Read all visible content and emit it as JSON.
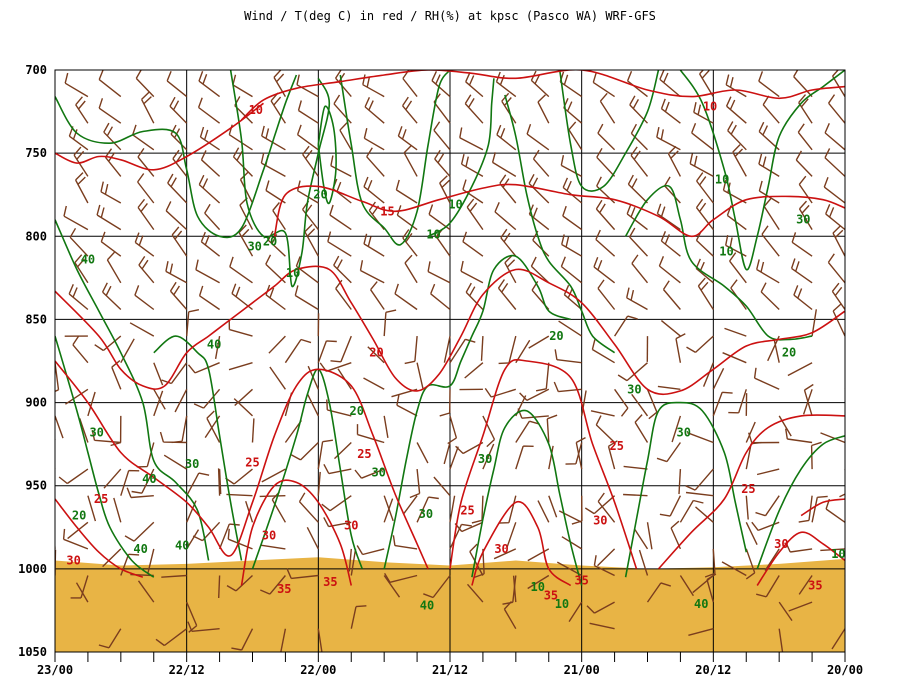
{
  "chart_data": {
    "type": "line",
    "title": "Wind / T(deg C) in red / RH(%) at kpsc (Pasco WA)  WRF-GFS",
    "xlabel": "",
    "ylabel": "",
    "x_tick_labels": [
      "23/00",
      "22/12",
      "22/00",
      "21/12",
      "21/00",
      "20/12",
      "20/00"
    ],
    "x_tick_hours": [
      0,
      12,
      24,
      36,
      48,
      60,
      72
    ],
    "y_tick_labels": [
      "700",
      "750",
      "800",
      "850",
      "900",
      "950",
      "1000",
      "1050"
    ],
    "y_ticks": [
      700,
      750,
      800,
      850,
      900,
      950,
      1000,
      1050
    ],
    "ylim": [
      700,
      1050
    ],
    "xlim": [
      0,
      72
    ],
    "grid": true,
    "colors": {
      "temperature": "#cc1111",
      "rh": "#117711",
      "wind": "#7a3d1e",
      "ground": "#e8b445"
    },
    "temperature_labels": [
      {
        "text": "10",
        "x": 18.3,
        "p": 724
      },
      {
        "text": "10",
        "x": 59.7,
        "p": 722
      },
      {
        "text": "15",
        "x": 30.3,
        "p": 785
      },
      {
        "text": "20",
        "x": 29.3,
        "p": 870
      },
      {
        "text": "25",
        "x": 18.0,
        "p": 936
      },
      {
        "text": "25",
        "x": 28.2,
        "p": 931
      },
      {
        "text": "25",
        "x": 37.6,
        "p": 965
      },
      {
        "text": "25",
        "x": 51.2,
        "p": 926
      },
      {
        "text": "25",
        "x": 63.2,
        "p": 952
      },
      {
        "text": "25",
        "x": 4.2,
        "p": 958
      },
      {
        "text": "30",
        "x": 1.7,
        "p": 995
      },
      {
        "text": "30",
        "x": 19.5,
        "p": 980
      },
      {
        "text": "30",
        "x": 27.0,
        "p": 974
      },
      {
        "text": "30",
        "x": 40.7,
        "p": 988
      },
      {
        "text": "30",
        "x": 49.7,
        "p": 971
      },
      {
        "text": "30",
        "x": 66.2,
        "p": 985
      },
      {
        "text": "35",
        "x": 20.9,
        "p": 1012
      },
      {
        "text": "35",
        "x": 25.1,
        "p": 1008
      },
      {
        "text": "35",
        "x": 45.2,
        "p": 1016
      },
      {
        "text": "35",
        "x": 48.0,
        "p": 1007
      },
      {
        "text": "35",
        "x": 69.3,
        "p": 1010
      }
    ],
    "rh_labels": [
      {
        "text": "10",
        "x": 34.5,
        "p": 799
      },
      {
        "text": "10",
        "x": 21.7,
        "p": 822
      },
      {
        "text": "10",
        "x": 60.8,
        "p": 766
      },
      {
        "text": "10",
        "x": 61.2,
        "p": 809
      },
      {
        "text": "10",
        "x": 36.5,
        "p": 781
      },
      {
        "text": "10",
        "x": 46.2,
        "p": 1021
      },
      {
        "text": "10",
        "x": 44.0,
        "p": 1011
      },
      {
        "text": "10",
        "x": 71.4,
        "p": 991
      },
      {
        "text": "20",
        "x": 24.2,
        "p": 775
      },
      {
        "text": "20",
        "x": 19.6,
        "p": 803
      },
      {
        "text": "20",
        "x": 45.7,
        "p": 860
      },
      {
        "text": "20",
        "x": 66.9,
        "p": 870
      },
      {
        "text": "20",
        "x": 27.5,
        "p": 905
      },
      {
        "text": "20",
        "x": 2.2,
        "p": 968
      },
      {
        "text": "30",
        "x": 18.2,
        "p": 806
      },
      {
        "text": "30",
        "x": 3.8,
        "p": 918
      },
      {
        "text": "30",
        "x": 12.5,
        "p": 937
      },
      {
        "text": "30",
        "x": 29.5,
        "p": 942
      },
      {
        "text": "30",
        "x": 33.8,
        "p": 967
      },
      {
        "text": "30",
        "x": 39.2,
        "p": 934
      },
      {
        "text": "30",
        "x": 52.8,
        "p": 892
      },
      {
        "text": "30",
        "x": 57.3,
        "p": 918
      },
      {
        "text": "30",
        "x": 68.2,
        "p": 790
      },
      {
        "text": "40",
        "x": 3.0,
        "p": 814
      },
      {
        "text": "40",
        "x": 14.5,
        "p": 865
      },
      {
        "text": "40",
        "x": 8.6,
        "p": 946
      },
      {
        "text": "40",
        "x": 7.8,
        "p": 988
      },
      {
        "text": "40",
        "x": 11.6,
        "p": 986
      },
      {
        "text": "40",
        "x": 33.9,
        "p": 1022
      },
      {
        "text": "40",
        "x": 58.9,
        "p": 1021
      }
    ],
    "temperature_isotherms": [
      [
        [
          17,
          730
        ],
        [
          19,
          718
        ],
        [
          22,
          711
        ],
        [
          26,
          707
        ],
        [
          30,
          703
        ],
        [
          34,
          700
        ],
        [
          38,
          702
        ],
        [
          42,
          705
        ],
        [
          48,
          700
        ],
        [
          54,
          712
        ],
        [
          58,
          716
        ],
        [
          62,
          712
        ],
        [
          66,
          717
        ],
        [
          69,
          712
        ],
        [
          72,
          710
        ]
      ],
      [
        [
          0,
          750
        ],
        [
          2,
          756
        ],
        [
          4,
          752
        ],
        [
          6,
          754
        ],
        [
          9,
          760
        ],
        [
          12,
          752
        ],
        [
          16,
          735
        ],
        [
          19,
          720
        ]
      ],
      [
        [
          20,
          800
        ],
        [
          21,
          775
        ],
        [
          24,
          770
        ],
        [
          28,
          779
        ],
        [
          31,
          785
        ],
        [
          35,
          778
        ],
        [
          39,
          771
        ],
        [
          42,
          769
        ],
        [
          47,
          775
        ],
        [
          51,
          778
        ],
        [
          55,
          788
        ],
        [
          58,
          800
        ],
        [
          60,
          790
        ],
        [
          63,
          778
        ],
        [
          67,
          776
        ],
        [
          70,
          778
        ],
        [
          72,
          783
        ]
      ],
      [
        [
          0,
          833
        ],
        [
          4,
          860
        ],
        [
          6,
          880
        ],
        [
          8,
          890
        ],
        [
          10,
          890
        ],
        [
          12,
          870
        ],
        [
          14,
          860
        ],
        [
          16,
          850
        ],
        [
          18,
          840
        ],
        [
          20,
          830
        ],
        [
          22,
          820
        ],
        [
          25,
          820
        ],
        [
          27,
          840
        ],
        [
          29,
          862
        ],
        [
          31,
          885
        ],
        [
          33,
          893
        ],
        [
          35,
          883
        ],
        [
          37,
          860
        ],
        [
          39,
          835
        ],
        [
          42,
          820
        ],
        [
          45,
          828
        ],
        [
          48,
          840
        ],
        [
          51,
          865
        ],
        [
          54,
          892
        ],
        [
          57,
          893
        ],
        [
          60,
          880
        ],
        [
          63,
          866
        ],
        [
          66,
          862
        ],
        [
          69,
          858
        ],
        [
          72,
          845
        ]
      ],
      [
        [
          0,
          875
        ],
        [
          3,
          900
        ],
        [
          6,
          930
        ],
        [
          9,
          945
        ],
        [
          12,
          960
        ],
        [
          14,
          975
        ],
        [
          16,
          992
        ],
        [
          18,
          960
        ],
        [
          20,
          920
        ],
        [
          22,
          890
        ],
        [
          24,
          880
        ],
        [
          27,
          890
        ],
        [
          29,
          920
        ],
        [
          31,
          955
        ],
        [
          33,
          985
        ],
        [
          34,
          1000
        ]
      ],
      [
        [
          36,
          1000
        ],
        [
          37,
          960
        ],
        [
          39,
          920
        ],
        [
          41,
          880
        ],
        [
          43,
          875
        ],
        [
          47,
          885
        ],
        [
          49,
          925
        ],
        [
          51,
          960
        ],
        [
          53,
          1000
        ]
      ],
      [
        [
          55,
          1000
        ],
        [
          58,
          978
        ],
        [
          61,
          958
        ],
        [
          63,
          930
        ],
        [
          65,
          915
        ],
        [
          68,
          908
        ],
        [
          72,
          908
        ]
      ],
      [
        [
          0,
          958
        ],
        [
          2,
          975
        ],
        [
          4,
          990
        ],
        [
          6,
          1000
        ],
        [
          8,
          1005
        ]
      ],
      [
        [
          17,
          1010
        ],
        [
          18,
          975
        ],
        [
          20,
          950
        ],
        [
          22,
          948
        ],
        [
          24,
          960
        ],
        [
          26,
          985
        ],
        [
          27,
          1010
        ]
      ],
      [
        [
          38,
          1010
        ],
        [
          39,
          990
        ],
        [
          42,
          960
        ],
        [
          44,
          975
        ],
        [
          45,
          1000
        ],
        [
          47,
          1010
        ]
      ],
      [
        [
          64,
          1010
        ],
        [
          66,
          990
        ],
        [
          68,
          978
        ],
        [
          70,
          985
        ],
        [
          72,
          995
        ]
      ],
      [
        [
          68,
          968
        ],
        [
          70,
          960
        ],
        [
          72,
          958
        ]
      ]
    ],
    "rh_isopleths": [
      [
        [
          0,
          716
        ],
        [
          2,
          738
        ],
        [
          5,
          744
        ],
        [
          8,
          737
        ],
        [
          11,
          738
        ],
        [
          12,
          760
        ],
        [
          13,
          788
        ],
        [
          15,
          800
        ],
        [
          17,
          795
        ],
        [
          19,
          760
        ],
        [
          20,
          740
        ],
        [
          21,
          720
        ],
        [
          22,
          703
        ]
      ],
      [
        [
          16,
          700
        ],
        [
          17,
          742
        ],
        [
          17.5,
          780
        ],
        [
          19,
          800
        ],
        [
          21,
          798
        ],
        [
          21.6,
          830
        ],
        [
          22.5,
          810
        ],
        [
          23,
          780
        ],
        [
          24,
          750
        ],
        [
          25,
          720
        ],
        [
          24,
          705
        ]
      ],
      [
        [
          24,
          745
        ],
        [
          24.5,
          770
        ],
        [
          25,
          780
        ],
        [
          25.6,
          760
        ],
        [
          25.4,
          735
        ],
        [
          24.6,
          722
        ],
        [
          24,
          745
        ]
      ],
      [
        [
          26,
          703
        ],
        [
          27,
          745
        ],
        [
          28,
          780
        ],
        [
          30,
          795
        ],
        [
          31.5,
          805
        ],
        [
          33,
          785
        ],
        [
          34,
          745
        ],
        [
          35,
          710
        ],
        [
          36,
          700
        ]
      ],
      [
        [
          34,
          800
        ],
        [
          36,
          792
        ],
        [
          38,
          770
        ],
        [
          39.5,
          745
        ],
        [
          39.8,
          720
        ],
        [
          40,
          705
        ]
      ],
      [
        [
          41,
          715
        ],
        [
          42,
          740
        ],
        [
          43,
          775
        ],
        [
          44,
          800
        ],
        [
          45,
          815
        ],
        [
          47,
          830
        ],
        [
          48,
          845
        ],
        [
          49,
          860
        ],
        [
          51,
          870
        ]
      ],
      [
        [
          46,
          700
        ],
        [
          47,
          745
        ],
        [
          48,
          770
        ],
        [
          50,
          770
        ],
        [
          52,
          750
        ],
        [
          54,
          725
        ],
        [
          55,
          700
        ]
      ],
      [
        [
          52,
          800
        ],
        [
          54,
          778
        ],
        [
          56,
          770
        ],
        [
          57,
          790
        ],
        [
          58,
          815
        ],
        [
          61,
          830
        ],
        [
          63,
          842
        ],
        [
          65,
          860
        ],
        [
          67,
          862
        ],
        [
          69,
          860
        ]
      ],
      [
        [
          57,
          700
        ],
        [
          59,
          720
        ],
        [
          61,
          760
        ],
        [
          62,
          790
        ],
        [
          63,
          820
        ],
        [
          64,
          800
        ],
        [
          65,
          770
        ],
        [
          66,
          740
        ],
        [
          68,
          720
        ],
        [
          70,
          710
        ],
        [
          72,
          700
        ]
      ],
      [
        [
          0,
          790
        ],
        [
          2,
          820
        ],
        [
          4,
          845
        ],
        [
          6,
          870
        ],
        [
          8,
          900
        ],
        [
          9,
          935
        ],
        [
          11,
          948
        ],
        [
          13,
          965
        ],
        [
          14,
          995
        ]
      ],
      [
        [
          0,
          860
        ],
        [
          2,
          905
        ],
        [
          3,
          930
        ],
        [
          4,
          955
        ],
        [
          5,
          975
        ],
        [
          7,
          995
        ],
        [
          9,
          1005
        ]
      ],
      [
        [
          9,
          870
        ],
        [
          11,
          860
        ],
        [
          13,
          870
        ],
        [
          14,
          880
        ],
        [
          15,
          920
        ],
        [
          16,
          960
        ],
        [
          17,
          995
        ]
      ],
      [
        [
          18,
          1000
        ],
        [
          20,
          962
        ],
        [
          22,
          920
        ],
        [
          23,
          895
        ],
        [
          24,
          880
        ],
        [
          25,
          900
        ],
        [
          26,
          940
        ],
        [
          27,
          980
        ],
        [
          28,
          1000
        ]
      ],
      [
        [
          30,
          1000
        ],
        [
          31,
          970
        ],
        [
          32,
          935
        ],
        [
          33,
          905
        ],
        [
          34,
          890
        ],
        [
          36,
          890
        ],
        [
          37,
          875
        ],
        [
          38,
          860
        ],
        [
          39,
          845
        ],
        [
          40,
          820
        ],
        [
          42,
          812
        ],
        [
          44,
          830
        ],
        [
          45,
          845
        ],
        [
          47,
          850
        ]
      ],
      [
        [
          38,
          1005
        ],
        [
          39,
          970
        ],
        [
          40,
          940
        ],
        [
          41,
          915
        ],
        [
          43,
          905
        ],
        [
          45,
          925
        ],
        [
          46,
          955
        ],
        [
          47,
          985
        ],
        [
          48,
          1010
        ]
      ],
      [
        [
          52,
          1005
        ],
        [
          53,
          970
        ],
        [
          54,
          935
        ],
        [
          55,
          905
        ],
        [
          57,
          900
        ],
        [
          59,
          905
        ],
        [
          61,
          930
        ],
        [
          62,
          960
        ],
        [
          63,
          990
        ]
      ],
      [
        [
          64,
          1000
        ],
        [
          66,
          965
        ],
        [
          68,
          940
        ],
        [
          70,
          925
        ],
        [
          72,
          920
        ]
      ]
    ],
    "wind_barbs_note": "brown wind barbs plotted at each forecast time and level",
    "ground_surface_p": [
      [
        0,
        995
      ],
      [
        6,
        998
      ],
      [
        12,
        997
      ],
      [
        18,
        995
      ],
      [
        24,
        993
      ],
      [
        30,
        996
      ],
      [
        36,
        998
      ],
      [
        42,
        995
      ],
      [
        48,
        998
      ],
      [
        54,
        1000
      ],
      [
        60,
        999
      ],
      [
        66,
        997
      ],
      [
        72,
        994
      ]
    ]
  }
}
